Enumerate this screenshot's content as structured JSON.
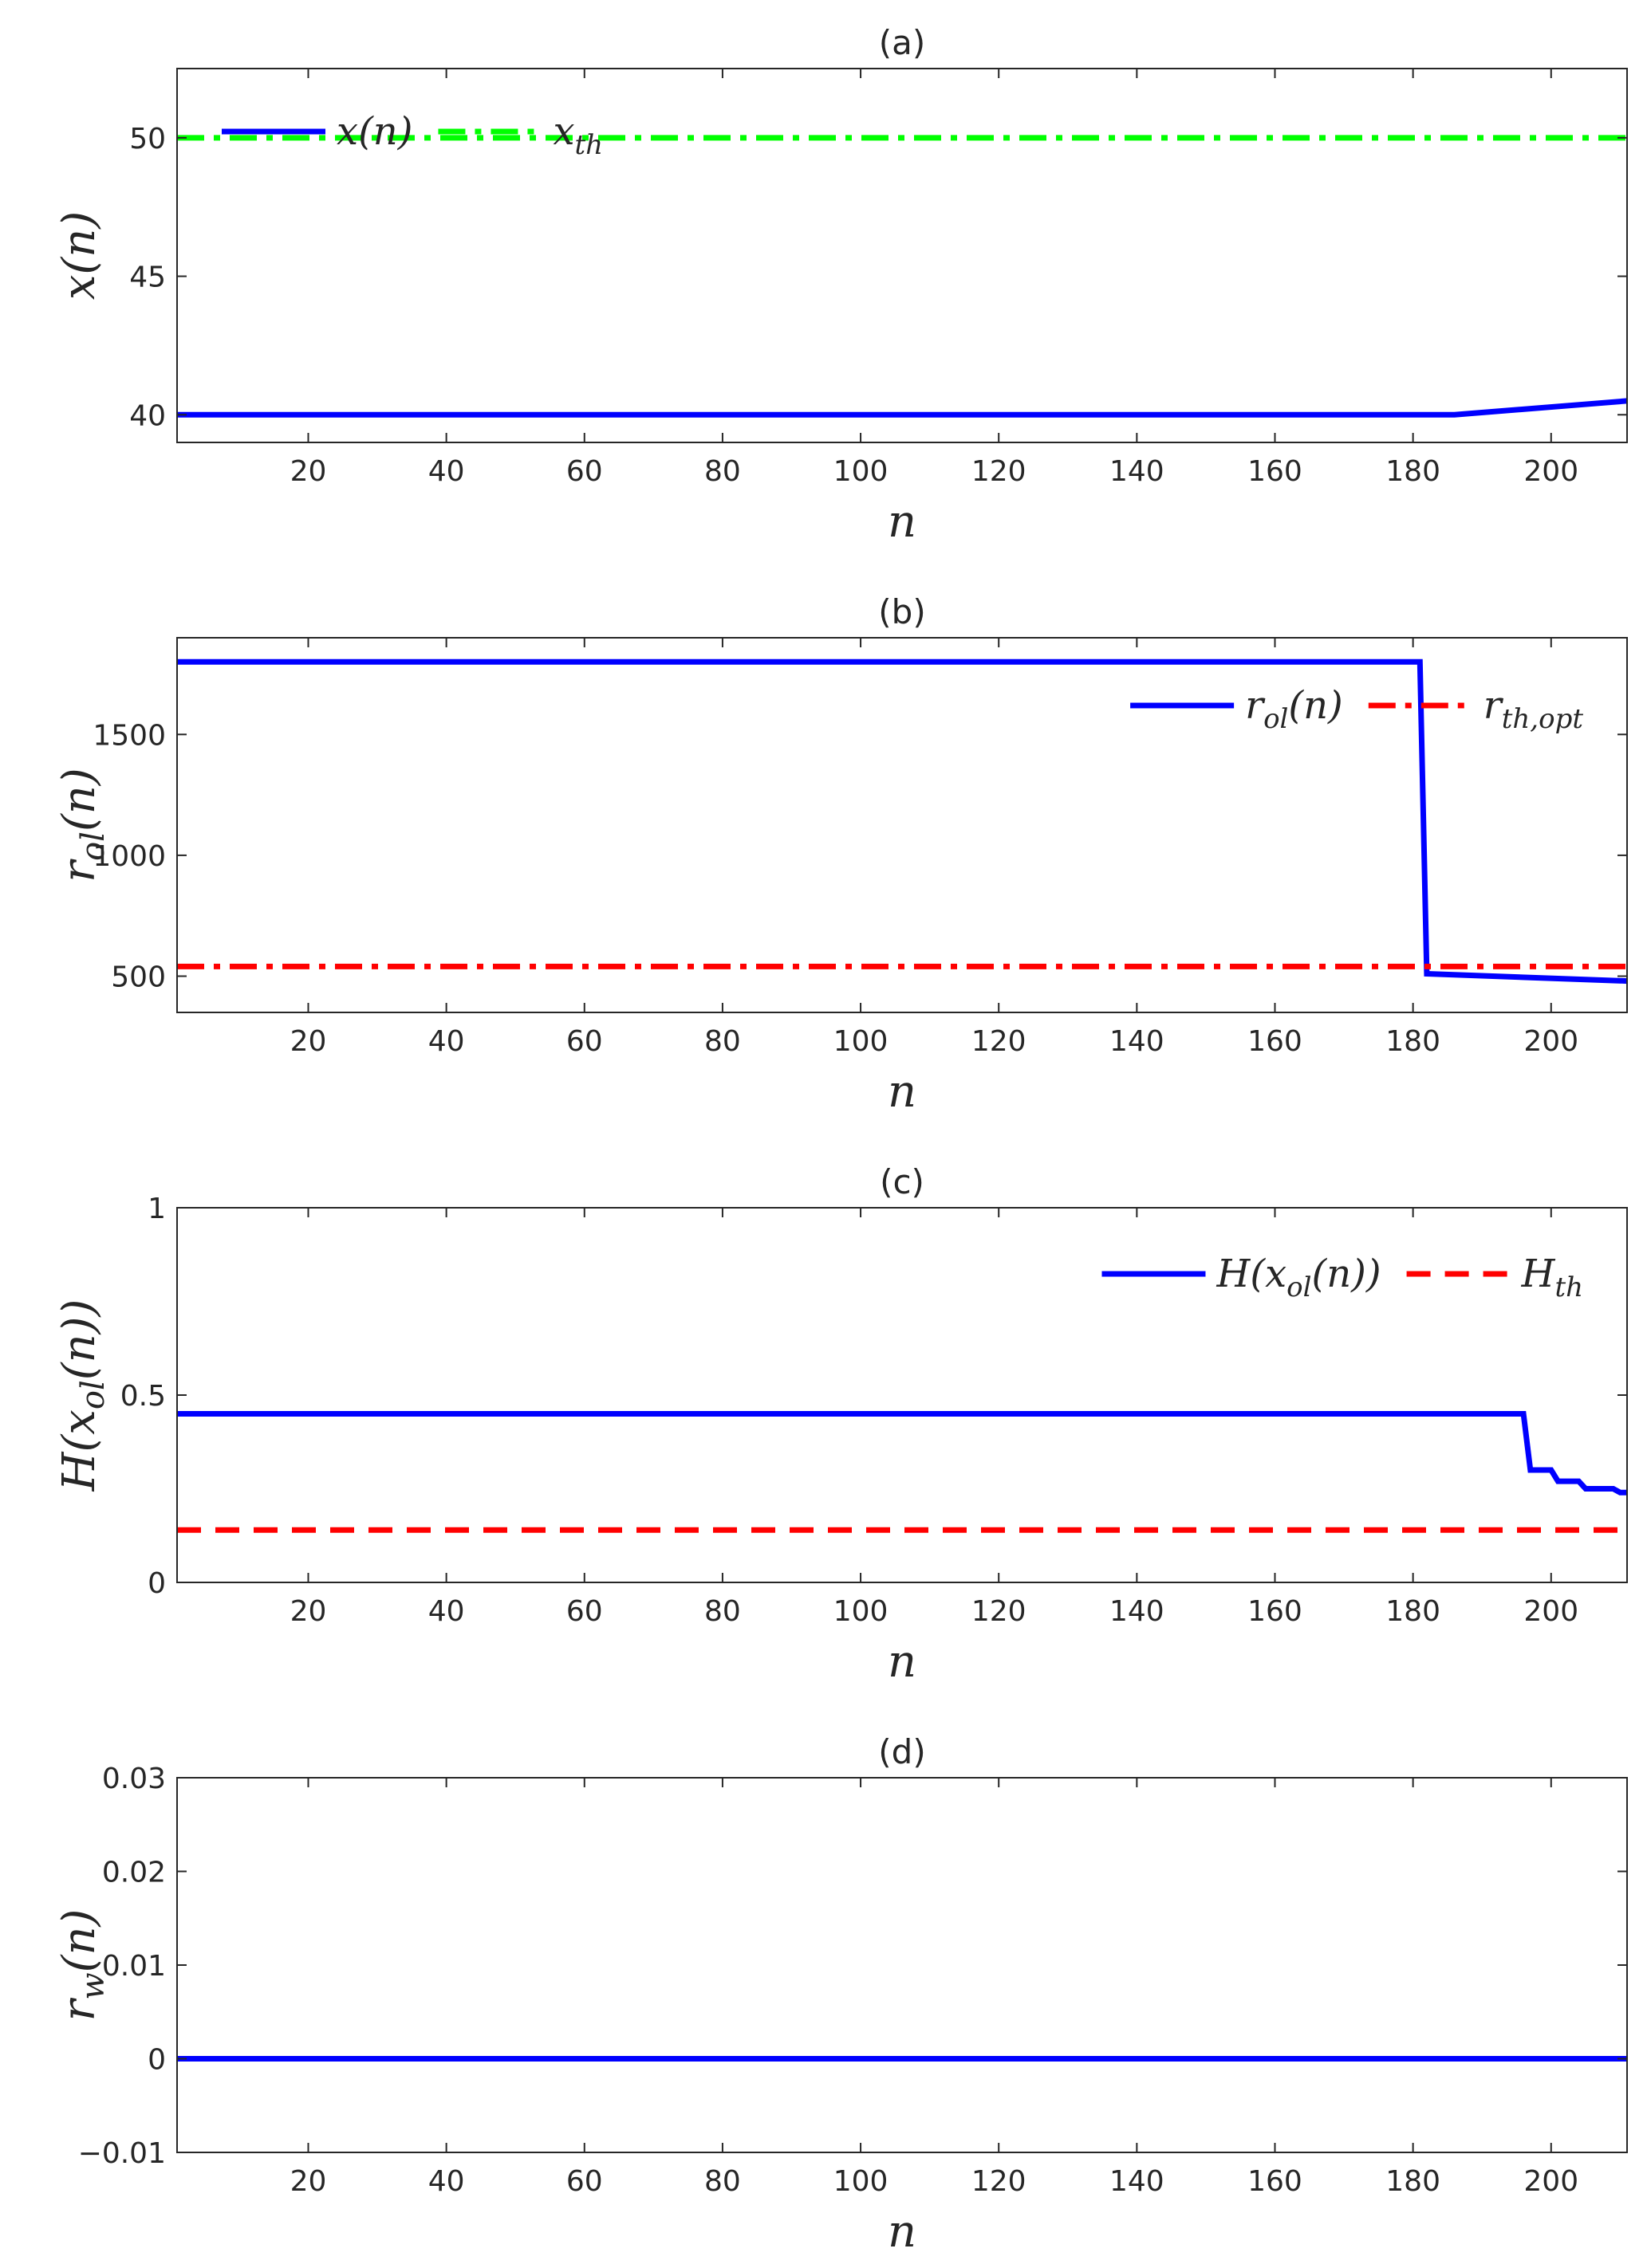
{
  "chart_data": [
    {
      "type": "line",
      "panel_title": "(a)",
      "xlabel": "n",
      "ylabel": "x(n)",
      "xlim": [
        1,
        211
      ],
      "ylim": [
        39,
        52.5
      ],
      "xticks": [
        20,
        40,
        60,
        80,
        100,
        120,
        140,
        160,
        180,
        200
      ],
      "yticks": [
        40,
        45,
        50
      ],
      "legend_position": "top-left",
      "series": [
        {
          "name": "x(n)",
          "legend_main": "x(n)",
          "legend_sub": "",
          "color": "#0000ff",
          "dash": "solid",
          "x": [
            1,
            186,
            211
          ],
          "y": [
            40,
            40,
            40.5
          ]
        },
        {
          "name": "x_th",
          "legend_main": "x",
          "legend_sub": "th",
          "color": "#00ff00",
          "dash": "dashdot",
          "x": [
            1,
            211
          ],
          "y": [
            50,
            50
          ]
        }
      ]
    },
    {
      "type": "line",
      "panel_title": "(b)",
      "xlabel": "n",
      "ylabel": "r_ol(n)",
      "xlim": [
        1,
        211
      ],
      "ylim": [
        350,
        1900
      ],
      "xticks": [
        20,
        40,
        60,
        80,
        100,
        120,
        140,
        160,
        180,
        200
      ],
      "yticks": [
        500,
        1000,
        1500
      ],
      "legend_position": "top-right",
      "series": [
        {
          "name": "r_ol(n)",
          "legend_main": "r",
          "legend_sub": "ol",
          "legend_suffix": "(n)",
          "color": "#0000ff",
          "dash": "solid",
          "x": [
            1,
            181,
            182,
            211
          ],
          "y": [
            1800,
            1800,
            510,
            480
          ]
        },
        {
          "name": "r_th,opt",
          "legend_main": "r",
          "legend_sub": "th,opt",
          "color": "#ff0000",
          "dash": "dashdot",
          "x": [
            1,
            211
          ],
          "y": [
            540,
            540
          ]
        }
      ]
    },
    {
      "type": "line",
      "panel_title": "(c)",
      "xlabel": "n",
      "ylabel": "H(x_ol(n))",
      "xlim": [
        1,
        211
      ],
      "ylim": [
        0,
        1
      ],
      "xticks": [
        20,
        40,
        60,
        80,
        100,
        120,
        140,
        160,
        180,
        200
      ],
      "yticks": [
        0,
        0.5,
        1
      ],
      "legend_position": "top-right",
      "series": [
        {
          "name": "H(x_ol(n))",
          "legend_main": "H(x",
          "legend_sub": "ol",
          "legend_suffix": "(n))",
          "color": "#0000ff",
          "dash": "solid",
          "x": [
            1,
            196,
            197,
            200,
            201,
            204,
            205,
            209,
            210,
            211
          ],
          "y": [
            0.45,
            0.45,
            0.3,
            0.3,
            0.27,
            0.27,
            0.25,
            0.25,
            0.24,
            0.24
          ]
        },
        {
          "name": "H_th",
          "legend_main": "H",
          "legend_sub": "th",
          "color": "#ff0000",
          "dash": "dashed",
          "x": [
            1,
            211
          ],
          "y": [
            0.14,
            0.14
          ]
        }
      ]
    },
    {
      "type": "line",
      "panel_title": "(d)",
      "xlabel": "n",
      "ylabel": "r_w(n)",
      "xlim": [
        1,
        211
      ],
      "ylim": [
        -0.01,
        0.03
      ],
      "xticks": [
        20,
        40,
        60,
        80,
        100,
        120,
        140,
        160,
        180,
        200
      ],
      "yticks": [
        -0.01,
        0,
        0.01,
        0.02,
        0.03
      ],
      "legend_position": "none",
      "series": [
        {
          "name": "r_w(n)",
          "color": "#0000ff",
          "dash": "solid",
          "x": [
            1,
            211
          ],
          "y": [
            0,
            0
          ]
        }
      ]
    }
  ]
}
